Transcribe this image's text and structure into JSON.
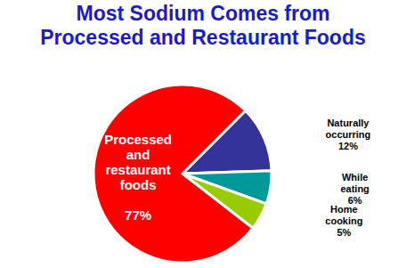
{
  "chart_data": {
    "type": "pie",
    "title": "Most Sodium Comes from\nProcessed and Restaurant Foods",
    "categories": [
      "Naturally occurring",
      "While eating",
      "Home cooking",
      "Processed and restaurant foods"
    ],
    "values": [
      12,
      6,
      5,
      77
    ],
    "value_labels": [
      "12%",
      "6%",
      "5%",
      "77%"
    ],
    "colors": [
      "#333399",
      "#009999",
      "#99cc00",
      "#ff0000"
    ],
    "data_labels": true
  }
}
